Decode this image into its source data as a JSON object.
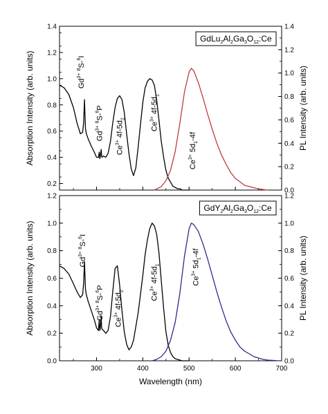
{
  "chart_data": [
    {
      "type": "line",
      "legend": {
        "parts": [
          "GdLu",
          "2",
          "Al",
          "2",
          "Ga",
          "3",
          "O",
          "12",
          ":Ce"
        ],
        "kinds": [
          "n",
          "s",
          "n",
          "s",
          "n",
          "s",
          "n",
          "s",
          "n"
        ],
        "placement": "top-right"
      },
      "ylabel_left": "Absorption Intensity (arb. units)",
      "ylabel_right": "PL Intensity (arb. units)",
      "xlim": [
        220,
        700
      ],
      "ylim_left": [
        0.15,
        1.4
      ],
      "ylim_right": [
        0.0,
        1.4
      ],
      "yticks_left": [
        "0.2",
        "0.4",
        "0.6",
        "0.8",
        "1.0",
        "1.2",
        "1.4"
      ],
      "yticks_right": [
        "0.0",
        "0.2",
        "0.4",
        "0.6",
        "0.8",
        "1.0",
        "1.2",
        "1.4"
      ],
      "grid": false,
      "series": [
        {
          "axis": "left",
          "color": "#000000",
          "x": [
            220,
            230,
            240,
            250,
            258,
            265,
            270,
            272,
            274,
            276,
            278,
            282,
            288,
            295,
            300,
            304,
            306,
            307,
            308,
            310,
            311,
            312,
            315,
            320,
            325,
            330,
            335,
            340,
            345,
            350,
            355,
            360,
            365,
            370,
            375,
            380,
            385,
            390,
            395,
            400,
            405,
            410,
            415,
            420,
            425,
            430,
            435,
            440,
            445,
            450,
            455,
            460,
            465,
            470,
            475,
            480,
            485,
            490,
            495,
            500
          ],
          "y": [
            0.95,
            0.93,
            0.88,
            0.78,
            0.66,
            0.58,
            0.59,
            0.66,
            0.84,
            0.62,
            0.58,
            0.54,
            0.49,
            0.44,
            0.4,
            0.4,
            0.44,
            0.39,
            0.4,
            0.46,
            0.41,
            0.4,
            0.41,
            0.4,
            0.43,
            0.52,
            0.66,
            0.78,
            0.85,
            0.87,
            0.84,
            0.74,
            0.58,
            0.43,
            0.31,
            0.26,
            0.32,
            0.48,
            0.65,
            0.82,
            0.93,
            0.98,
            1.0,
            0.99,
            0.95,
            0.84,
            0.68,
            0.52,
            0.4,
            0.3,
            0.24,
            0.21,
            0.18,
            0.17,
            0.16,
            0.16,
            0.15,
            0.15,
            0.15,
            0.15
          ]
        },
        {
          "axis": "right",
          "color": "#c0393b",
          "x": [
            425,
            440,
            450,
            460,
            470,
            480,
            490,
            500,
            505,
            510,
            520,
            530,
            540,
            550,
            560,
            570,
            580,
            590,
            600,
            610,
            620,
            630,
            640,
            650,
            660,
            670
          ],
          "y": [
            0.0,
            0.03,
            0.08,
            0.17,
            0.33,
            0.57,
            0.84,
            1.01,
            1.04,
            1.02,
            0.92,
            0.79,
            0.65,
            0.52,
            0.4,
            0.3,
            0.22,
            0.15,
            0.1,
            0.07,
            0.04,
            0.03,
            0.02,
            0.01,
            0.005,
            0.0
          ]
        }
      ],
      "annotations": [
        {
          "label": "Gd",
          "sup1": "3+",
          "mid": " ",
          "sup2": "8",
          "mid2": "S-",
          "sup3": "6",
          "tail": "I",
          "x": 272,
          "y": 1.05
        },
        {
          "label": "Gd",
          "sup1": "3+",
          "mid": " ",
          "sup2": "8",
          "mid2": "S-",
          "sup3": "6",
          "tail": "P",
          "x": 312,
          "y": 0.66
        },
        {
          "label": "Ce",
          "sup1": "3+",
          "mid": " 4f-5d",
          "sub1": "2",
          "x": 355,
          "y": 0.56
        },
        {
          "label": "Ce",
          "sup1": "3+",
          "mid": " 4f-5d",
          "sub1": "1",
          "x": 430,
          "y": 0.74
        },
        {
          "label": "Ce",
          "sup1": "3+",
          "mid": " 5d",
          "sub1": "1",
          "tail": "-4f",
          "x": 513,
          "y": 0.45
        }
      ]
    },
    {
      "type": "line",
      "legend": {
        "parts": [
          "GdY",
          "2",
          "Al",
          "2",
          "Ga",
          "3",
          "O",
          "12",
          ":Ce"
        ],
        "kinds": [
          "n",
          "s",
          "n",
          "s",
          "n",
          "s",
          "n",
          "s",
          "n"
        ],
        "placement": "top-right"
      },
      "xlabel": "Wavelength (nm)",
      "ylabel_left": "Absorption Intensity (arb. units)",
      "ylabel_right": "PL Intensity (arb. units)",
      "xlim": [
        220,
        700
      ],
      "ylim_left": [
        0.0,
        1.2
      ],
      "ylim_right": [
        0.0,
        1.2
      ],
      "xticks": [
        "300",
        "400",
        "500",
        "600",
        "700"
      ],
      "yticks_left": [
        "0.0",
        "0.2",
        "0.4",
        "0.6",
        "0.8",
        "1.0",
        "1.2"
      ],
      "yticks_right": [
        "0.0",
        "0.2",
        "0.4",
        "0.6",
        "0.8",
        "1.0",
        "1.2"
      ],
      "grid": false,
      "series": [
        {
          "axis": "left",
          "color": "#000000",
          "x": [
            220,
            230,
            240,
            250,
            258,
            265,
            270,
            272,
            274,
            276,
            278,
            282,
            288,
            295,
            300,
            304,
            306,
            307,
            308,
            310,
            311,
            312,
            315,
            320,
            325,
            330,
            335,
            340,
            345,
            350,
            355,
            360,
            365,
            370,
            375,
            380,
            390,
            400,
            405,
            410,
            415,
            420,
            425,
            430,
            435,
            440,
            445,
            450,
            455,
            460,
            465,
            470,
            475,
            480,
            485,
            490,
            495,
            500
          ],
          "y": [
            0.69,
            0.67,
            0.63,
            0.56,
            0.5,
            0.46,
            0.48,
            0.56,
            0.72,
            0.52,
            0.48,
            0.43,
            0.37,
            0.3,
            0.24,
            0.22,
            0.3,
            0.22,
            0.23,
            0.32,
            0.24,
            0.23,
            0.22,
            0.2,
            0.22,
            0.32,
            0.5,
            0.67,
            0.69,
            0.55,
            0.36,
            0.21,
            0.12,
            0.08,
            0.1,
            0.15,
            0.35,
            0.62,
            0.77,
            0.88,
            0.96,
            1.0,
            0.98,
            0.92,
            0.78,
            0.58,
            0.38,
            0.21,
            0.11,
            0.06,
            0.03,
            0.015,
            0.01,
            0.005,
            0.0,
            0.0,
            0.0,
            0.0
          ]
        },
        {
          "axis": "right",
          "color": "#2a2a90",
          "x": [
            420,
            430,
            440,
            450,
            460,
            470,
            480,
            490,
            500,
            505,
            510,
            520,
            530,
            540,
            550,
            560,
            570,
            580,
            590,
            600,
            610,
            620,
            630,
            640,
            650,
            660,
            670,
            680,
            690,
            700
          ],
          "y": [
            0.0,
            0.01,
            0.03,
            0.07,
            0.15,
            0.28,
            0.49,
            0.76,
            0.96,
            1.0,
            0.99,
            0.94,
            0.85,
            0.74,
            0.62,
            0.5,
            0.39,
            0.29,
            0.21,
            0.15,
            0.1,
            0.07,
            0.05,
            0.03,
            0.02,
            0.01,
            0.005,
            0.003,
            0.001,
            0.0
          ]
        }
      ],
      "annotations": [
        {
          "label": "Gd",
          "sup1": "3+",
          "mid": " ",
          "sup2": "8",
          "mid2": "S-",
          "sup3": "6",
          "tail": "I",
          "x": 275,
          "y": 0.8
        },
        {
          "label": "Gd",
          "sup1": "3+",
          "mid": " ",
          "sup2": "8",
          "mid2": "S-",
          "sup3": "6",
          "tail": "P",
          "x": 313,
          "y": 0.42
        },
        {
          "label": "Ce",
          "sup1": "3+",
          "mid": " 4f-5d",
          "sub1": "2",
          "x": 352,
          "y": 0.38
        },
        {
          "label": "Ce",
          "sup1": "3+",
          "mid": " 4f-5d",
          "sub1": "1",
          "x": 430,
          "y": 0.57
        },
        {
          "label": "Ce",
          "sup1": "3+",
          "mid": " 5d",
          "sub1": "1",
          "tail": "-4f",
          "x": 520,
          "y": 0.68
        }
      ]
    }
  ]
}
